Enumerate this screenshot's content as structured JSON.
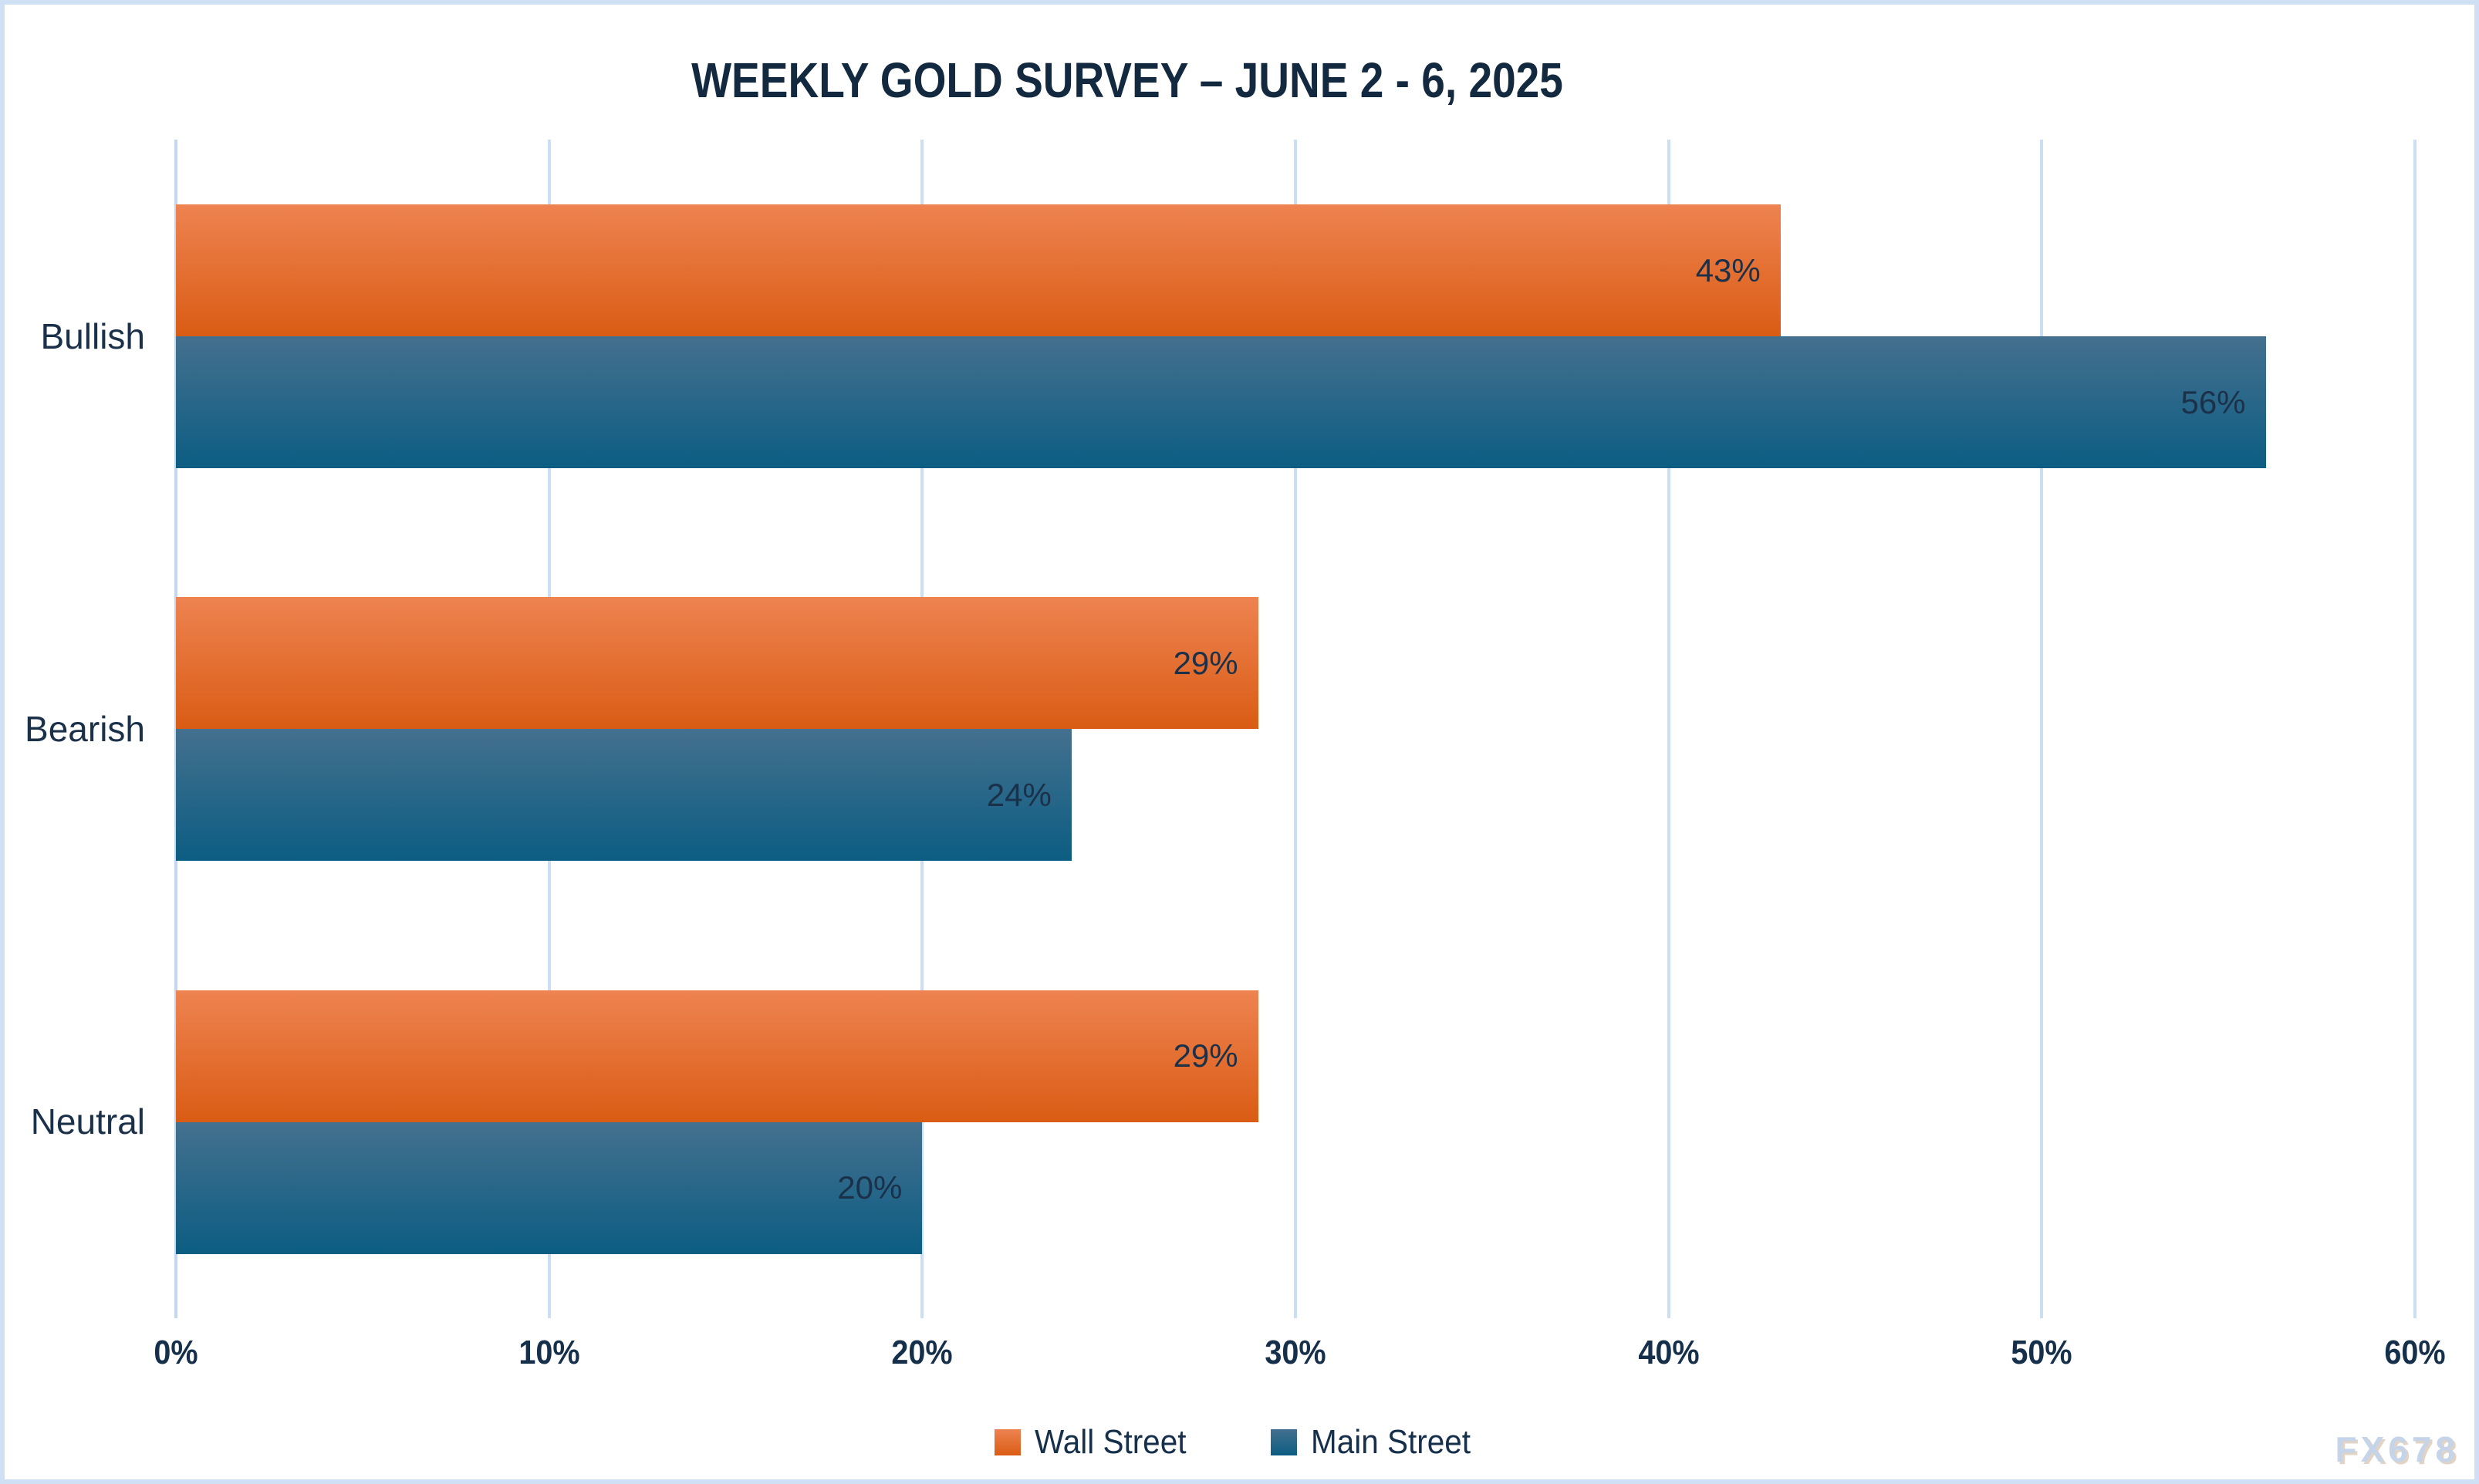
{
  "chart_data": {
    "type": "bar",
    "orientation": "horizontal",
    "title": "WEEKLY GOLD SURVEY – JUNE 2 - 6, 2025",
    "categories": [
      "Bullish",
      "Bearish",
      "Neutral"
    ],
    "series": [
      {
        "name": "Wall Street",
        "values": [
          43,
          29,
          29
        ],
        "labels": [
          "43%",
          "29%",
          "29%"
        ],
        "color_top": "#ee8351",
        "color_bottom": "#da5c14"
      },
      {
        "name": "Main Street",
        "values": [
          56,
          24,
          20
        ],
        "labels": [
          "56%",
          "24%",
          "20%"
        ],
        "color_top": "#44708e",
        "color_bottom": "#0c5d83"
      }
    ],
    "x_axis": {
      "min": 0,
      "max": 60,
      "tick_values": [
        0,
        10,
        20,
        30,
        40,
        50,
        60
      ],
      "tick_labels": [
        "0%",
        "10%",
        "20%",
        "30%",
        "40%",
        "50%",
        "60%"
      ]
    },
    "grid": "vertical-only",
    "legend_position": "bottom-center",
    "data_label_position": "inside-end"
  },
  "watermark": {
    "text": "FX678"
  },
  "colors": {
    "title_text": "#12293f",
    "label_text": "#1b3049",
    "gridline": "#ccdef3",
    "frame_border": "#cfe0f4",
    "background": "#ffffff",
    "wall_street_orange": "#e2661f",
    "main_street_blue": "#1a6287",
    "watermark_text": "#c5d4e8"
  }
}
